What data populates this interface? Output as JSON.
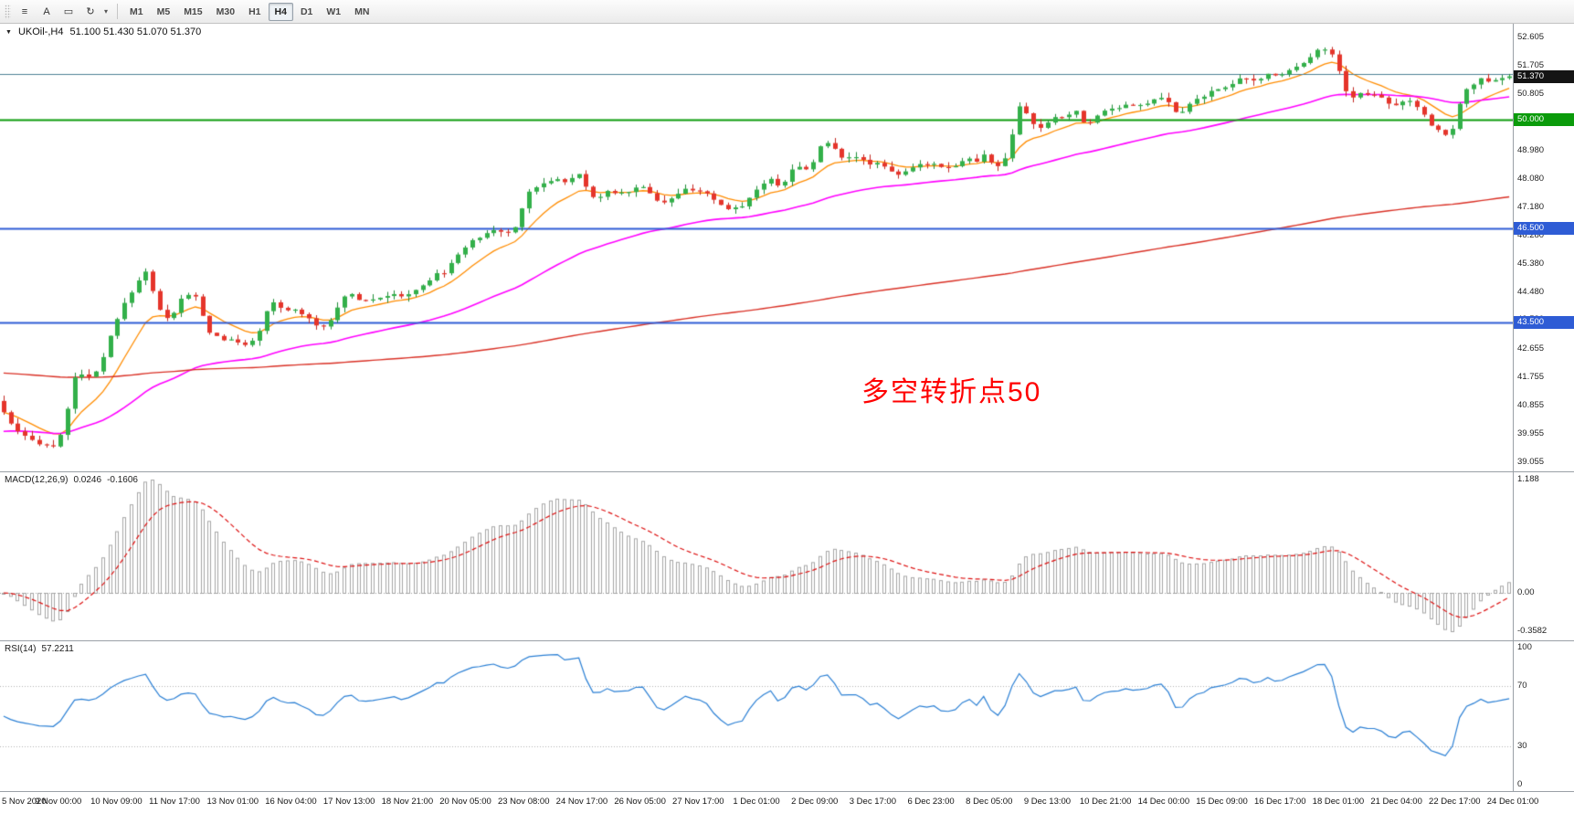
{
  "toolbar": {
    "tool_icons": [
      {
        "name": "chart-bars-icon",
        "glyph": "≡"
      },
      {
        "name": "text-label-icon",
        "glyph": "A"
      },
      {
        "name": "text-frame-icon",
        "glyph": "▭"
      },
      {
        "name": "refresh-cycle-icon",
        "glyph": "↻"
      }
    ],
    "dropdown_caret": "▾",
    "timeframes": [
      "M1",
      "M5",
      "M15",
      "M30",
      "H1",
      "H4",
      "D1",
      "W1",
      "MN"
    ],
    "active_timeframe": "H4"
  },
  "header": {
    "collapse_glyph": "▼",
    "symbol": "UKOil-,H4",
    "ohlc": "51.100 51.430 51.070 51.370"
  },
  "annotation": {
    "text": "多空转折点50",
    "color": "#ff0000"
  },
  "chart_data": {
    "type": "candlestick",
    "title": "UKOil-,H4",
    "timeframe": "H4",
    "bars": 213,
    "current_price": 51.37,
    "price_range": {
      "min": 38.75,
      "max": 53.05
    },
    "price_axis_ticks": [
      "52.605",
      "51.705",
      "50.805",
      "49.905",
      "48.980",
      "48.080",
      "47.180",
      "46.280",
      "45.380",
      "44.480",
      "43.580",
      "42.655",
      "41.755",
      "40.855",
      "39.955",
      "39.055"
    ],
    "price_tags": [
      {
        "label": "51.370",
        "price": 51.37,
        "bg": "#141414"
      },
      {
        "label": "50.000",
        "price": 50.0,
        "bg": "#0b9b0b"
      },
      {
        "label": "46.500",
        "price": 46.5,
        "bg": "#2e5cd5"
      },
      {
        "label": "43.500",
        "price": 43.5,
        "bg": "#2e5cd5"
      }
    ],
    "horizontal_lines": [
      {
        "price": 51.44,
        "color": "#4e8094",
        "width": 1
      },
      {
        "price": 50.0,
        "color": "#0b9b0b",
        "width": 2
      },
      {
        "price": 46.5,
        "color": "#2e5cd5",
        "width": 2
      },
      {
        "price": 43.5,
        "color": "#2e5cd5",
        "width": 2
      }
    ],
    "candle_colors": {
      "up": {
        "body": "#33b04a",
        "wick": "#1f8c38"
      },
      "down": {
        "body": "#e5352b",
        "wick": "#c22720"
      }
    },
    "moving_averages": [
      {
        "name": "fast",
        "period": 10,
        "seed": null,
        "color": "#ff8c00",
        "width": 1.3
      },
      {
        "name": "medium",
        "period": 45,
        "seed": 40.0,
        "color": "#ff00ff",
        "width": 1.6
      },
      {
        "name": "slow",
        "period": 250,
        "seed": 41.9,
        "color": "#d93025",
        "width": 1.4
      }
    ],
    "close_waypoints": [
      [
        0,
        41.0
      ],
      [
        1,
        40.4
      ],
      [
        3,
        39.9
      ],
      [
        5,
        39.7
      ],
      [
        8,
        39.5
      ],
      [
        10,
        41.0
      ],
      [
        11,
        42.3
      ],
      [
        12,
        41.6
      ],
      [
        14,
        42.0
      ],
      [
        16,
        43.3
      ],
      [
        18,
        44.3
      ],
      [
        21,
        45.3
      ],
      [
        22,
        44.0
      ],
      [
        24,
        43.6
      ],
      [
        26,
        44.4
      ],
      [
        28,
        44.3
      ],
      [
        29,
        43.3
      ],
      [
        31,
        43.0
      ],
      [
        33,
        42.9
      ],
      [
        35,
        42.8
      ],
      [
        37,
        43.3
      ],
      [
        38,
        44.2
      ],
      [
        40,
        43.9
      ],
      [
        42,
        43.9
      ],
      [
        44,
        43.6
      ],
      [
        45,
        43.3
      ],
      [
        47,
        43.7
      ],
      [
        49,
        44.5
      ],
      [
        51,
        44.2
      ],
      [
        53,
        44.3
      ],
      [
        55,
        44.4
      ],
      [
        57,
        44.3
      ],
      [
        58,
        44.5
      ],
      [
        60,
        44.7
      ],
      [
        62,
        45.2
      ],
      [
        63,
        45.0
      ],
      [
        64,
        45.6
      ],
      [
        66,
        46.0
      ],
      [
        68,
        46.3
      ],
      [
        70,
        46.5
      ],
      [
        71,
        46.3
      ],
      [
        73,
        46.6
      ],
      [
        74,
        47.6
      ],
      [
        76,
        47.9
      ],
      [
        78,
        48.1
      ],
      [
        80,
        48.0
      ],
      [
        82,
        48.3
      ],
      [
        83,
        47.6
      ],
      [
        84,
        47.5
      ],
      [
        86,
        47.7
      ],
      [
        88,
        47.6
      ],
      [
        90,
        47.9
      ],
      [
        92,
        47.6
      ],
      [
        93,
        47.3
      ],
      [
        95,
        47.5
      ],
      [
        97,
        47.8
      ],
      [
        99,
        47.7
      ],
      [
        101,
        47.3
      ],
      [
        103,
        47.1
      ],
      [
        105,
        47.3
      ],
      [
        107,
        47.9
      ],
      [
        109,
        48.1
      ],
      [
        110,
        47.8
      ],
      [
        111,
        48.2
      ],
      [
        112,
        48.5
      ],
      [
        114,
        48.4
      ],
      [
        116,
        49.3
      ],
      [
        118,
        49.0
      ],
      [
        119,
        48.7
      ],
      [
        120,
        48.9
      ],
      [
        122,
        48.6
      ],
      [
        124,
        48.6
      ],
      [
        126,
        48.3
      ],
      [
        127,
        48.2
      ],
      [
        129,
        48.5
      ],
      [
        131,
        48.6
      ],
      [
        133,
        48.5
      ],
      [
        135,
        48.5
      ],
      [
        136,
        48.8
      ],
      [
        138,
        48.6
      ],
      [
        139,
        49.0
      ],
      [
        140,
        48.4
      ],
      [
        142,
        48.8
      ],
      [
        143,
        50.0
      ],
      [
        144,
        50.6
      ],
      [
        145,
        49.9
      ],
      [
        147,
        49.7
      ],
      [
        148,
        50.0
      ],
      [
        150,
        50.1
      ],
      [
        152,
        50.3
      ],
      [
        153,
        49.6
      ],
      [
        154,
        50.1
      ],
      [
        156,
        50.3
      ],
      [
        159,
        50.5
      ],
      [
        161,
        50.4
      ],
      [
        163,
        50.7
      ],
      [
        165,
        50.5
      ],
      [
        166,
        50.0
      ],
      [
        167,
        50.4
      ],
      [
        169,
        50.7
      ],
      [
        171,
        50.9
      ],
      [
        173,
        51.1
      ],
      [
        175,
        51.3
      ],
      [
        177,
        51.2
      ],
      [
        179,
        51.5
      ],
      [
        180,
        51.4
      ],
      [
        182,
        51.6
      ],
      [
        184,
        51.9
      ],
      [
        186,
        52.3
      ],
      [
        188,
        52.0
      ],
      [
        189,
        51.3
      ],
      [
        190,
        50.6
      ],
      [
        192,
        50.9
      ],
      [
        193,
        50.7
      ],
      [
        194,
        50.9
      ],
      [
        195,
        50.6
      ],
      [
        197,
        50.4
      ],
      [
        198,
        50.7
      ],
      [
        199,
        50.5
      ],
      [
        201,
        50.0
      ],
      [
        202,
        49.7
      ],
      [
        204,
        49.5
      ],
      [
        205,
        49.8
      ],
      [
        206,
        50.9
      ],
      [
        208,
        51.2
      ],
      [
        209,
        51.3
      ],
      [
        210,
        51.1
      ],
      [
        211,
        51.3
      ],
      [
        212,
        51.37
      ]
    ],
    "macd": {
      "name": "MACD(12,26,9)",
      "value_main": "0.0246",
      "value_signal": "-0.1606",
      "fast": 12,
      "slow": 26,
      "signal_period": 9,
      "hist_color": "#a6a6a6",
      "signal_color": "#dd1111",
      "axis_labels": [
        "1.188",
        "0.00",
        "-0.3582"
      ]
    },
    "rsi": {
      "name": "RSI(14)",
      "value": "57.2211",
      "period": 14,
      "color": "#2a7fd4",
      "levels": [
        70,
        30
      ],
      "axis_labels": [
        "100",
        "70",
        "30",
        "0"
      ]
    },
    "time_labels": [
      "5 Nov 2020",
      "9 Nov 00:00",
      "10 Nov 09:00",
      "11 Nov 17:00",
      "13 Nov 01:00",
      "16 Nov 04:00",
      "17 Nov 13:00",
      "18 Nov 21:00",
      "20 Nov 05:00",
      "23 Nov 08:00",
      "24 Nov 17:00",
      "26 Nov 05:00",
      "27 Nov 17:00",
      "1 Dec 01:00",
      "2 Dec 09:00",
      "3 Dec 17:00",
      "6 Dec 23:00",
      "8 Dec 05:00",
      "9 Dec 13:00",
      "10 Dec 21:00",
      "14 Dec 00:00",
      "15 Dec 09:00",
      "16 Dec 17:00",
      "18 Dec 01:00",
      "21 Dec 04:00",
      "22 Dec 17:00",
      "24 Dec 01:00"
    ]
  }
}
